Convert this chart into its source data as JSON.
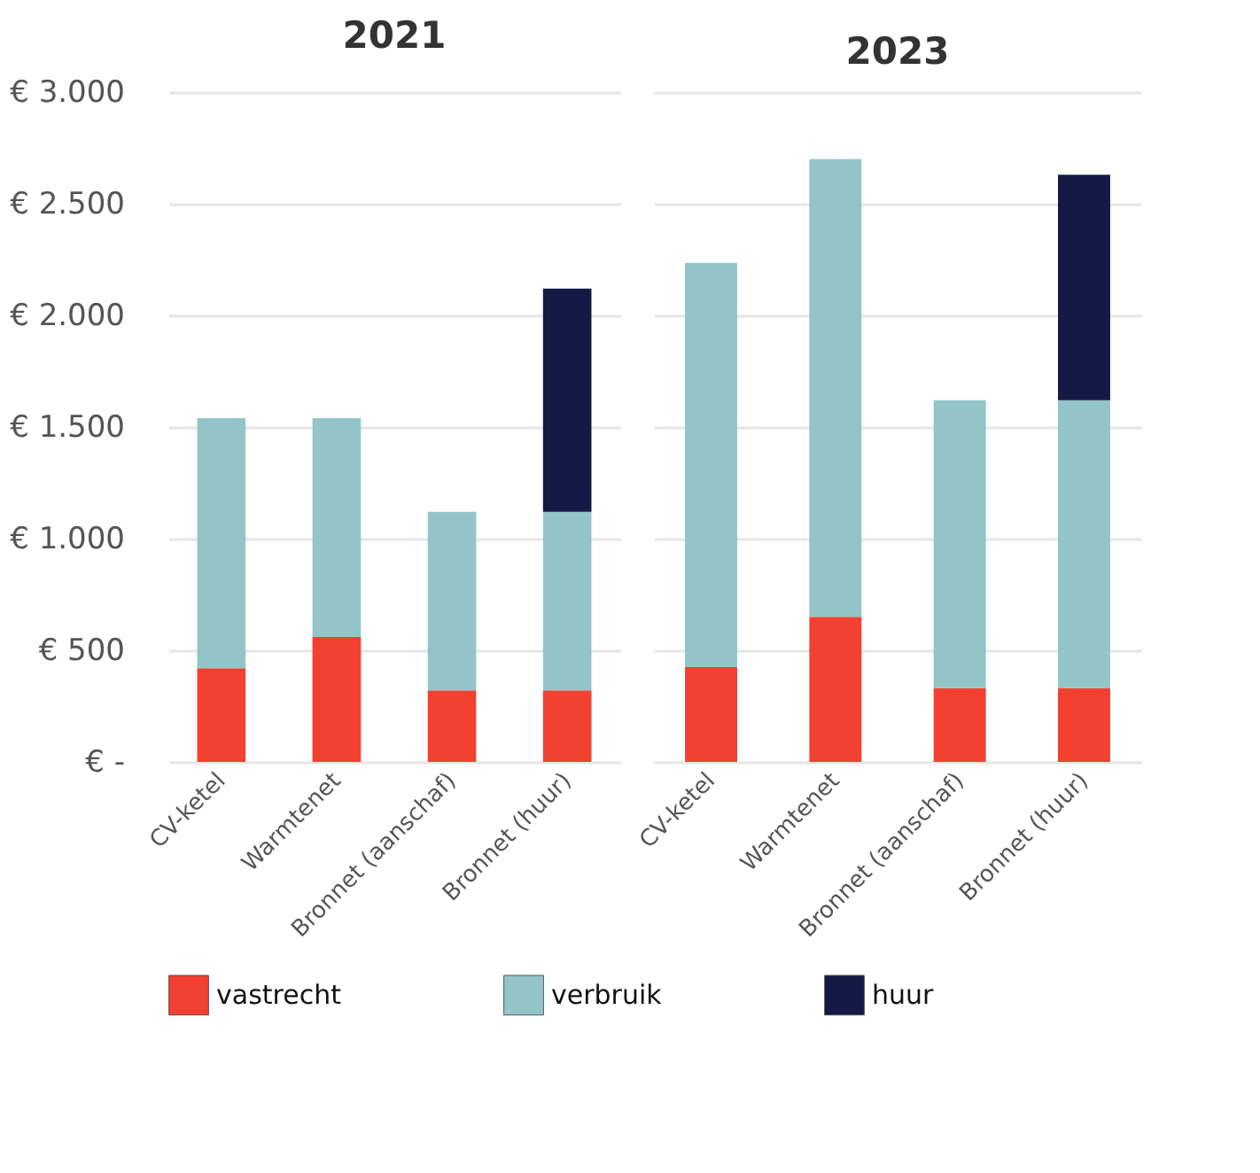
{
  "chart_data": [
    {
      "type": "bar",
      "title": "2021",
      "stacked": true,
      "categories": [
        "CV-ketel",
        "Warmtenet",
        "Bronnet (aanschaf)",
        "Bronnet (huur)"
      ],
      "series": [
        {
          "name": "vastrecht",
          "color": "#f24130",
          "values": [
            420,
            560,
            320,
            320
          ]
        },
        {
          "name": "verbruik",
          "color": "#93c5c8",
          "values": [
            1120,
            980,
            800,
            800
          ]
        },
        {
          "name": "huur",
          "color": "#141a45",
          "values": [
            null,
            null,
            null,
            1000
          ]
        }
      ],
      "ylim": [
        0,
        3000
      ],
      "yticks": [
        {
          "value": 0,
          "label": "€ -"
        },
        {
          "value": 500,
          "label": "€ 500"
        },
        {
          "value": 1000,
          "label": "€ 1.000"
        },
        {
          "value": 1500,
          "label": "€ 1.500"
        },
        {
          "value": 2000,
          "label": "€ 2.000"
        },
        {
          "value": 2500,
          "label": "€ 2.500"
        },
        {
          "value": 3000,
          "label": "€ 3.000"
        }
      ],
      "grid": "y",
      "legend": "bottom"
    },
    {
      "type": "bar",
      "title": "2023",
      "stacked": true,
      "categories": [
        "CV-ketel",
        "Warmtenet",
        "Bronnet (aanschaf)",
        "Bronnet (huur)"
      ],
      "series": [
        {
          "name": "vastrecht",
          "color": "#f24130",
          "values": [
            425,
            650,
            330,
            330
          ]
        },
        {
          "name": "verbruik",
          "color": "#93c5c8",
          "values": [
            1810,
            2050,
            1290,
            1290
          ]
        },
        {
          "name": "huur",
          "color": "#141a45",
          "values": [
            null,
            null,
            null,
            1010
          ]
        }
      ],
      "ylim": [
        0,
        3000
      ],
      "yticks": [
        {
          "value": 0,
          "label": null
        },
        {
          "value": 500,
          "label": null
        },
        {
          "value": 1000,
          "label": null
        },
        {
          "value": 1500,
          "label": null
        },
        {
          "value": 2000,
          "label": null
        },
        {
          "value": 2500,
          "label": null
        },
        {
          "value": 3000,
          "label": null
        }
      ],
      "grid": "y",
      "tick_labels": "x",
      "legend": "bottom"
    }
  ]
}
